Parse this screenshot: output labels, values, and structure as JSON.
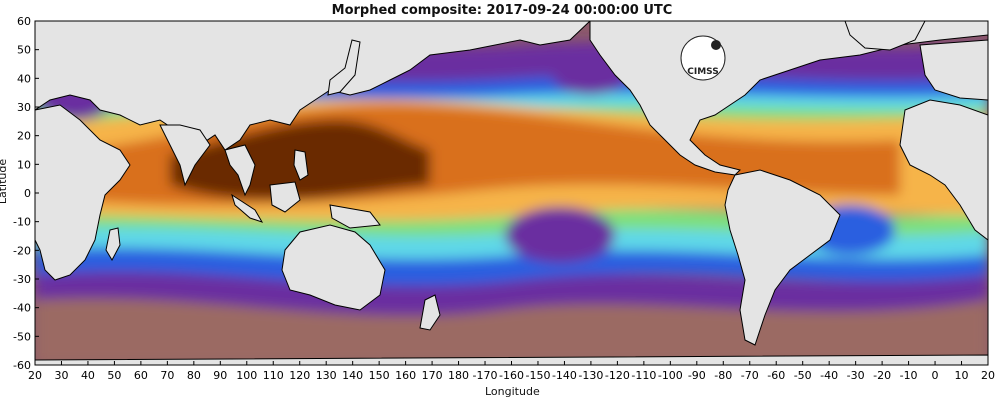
{
  "title": "Morphed composite: 2017-09-24 00:00:00 UTC",
  "xlabel": "Longitude",
  "ylabel": "Latitude",
  "logo_text": "CIMSS",
  "x_ticks": [
    "20",
    "30",
    "40",
    "50",
    "60",
    "70",
    "80",
    "90",
    "100",
    "110",
    "120",
    "130",
    "140",
    "150",
    "160",
    "170",
    "180",
    "-170",
    "-160",
    "-150",
    "-140",
    "-130",
    "-120",
    "-110",
    "-100",
    "-90",
    "-80",
    "-70",
    "-60",
    "-50",
    "-40",
    "-30",
    "-20",
    "-10",
    "0",
    "10",
    "20"
  ],
  "y_ticks": [
    "60",
    "50",
    "40",
    "30",
    "20",
    "10",
    "0",
    "-10",
    "-20",
    "-30",
    "-40",
    "-50",
    "-60"
  ],
  "colors": {
    "land": "#e4e4e4",
    "coast": "#000000",
    "very_moist": "#6b2a00",
    "moist": "#d9701a",
    "mid": "#f6b44a",
    "green": "#7fe07c",
    "cyan": "#5fd8e8",
    "blue": "#2c5fe0",
    "purple": "#6a2ea0",
    "dry": "#9a6a6f"
  }
}
